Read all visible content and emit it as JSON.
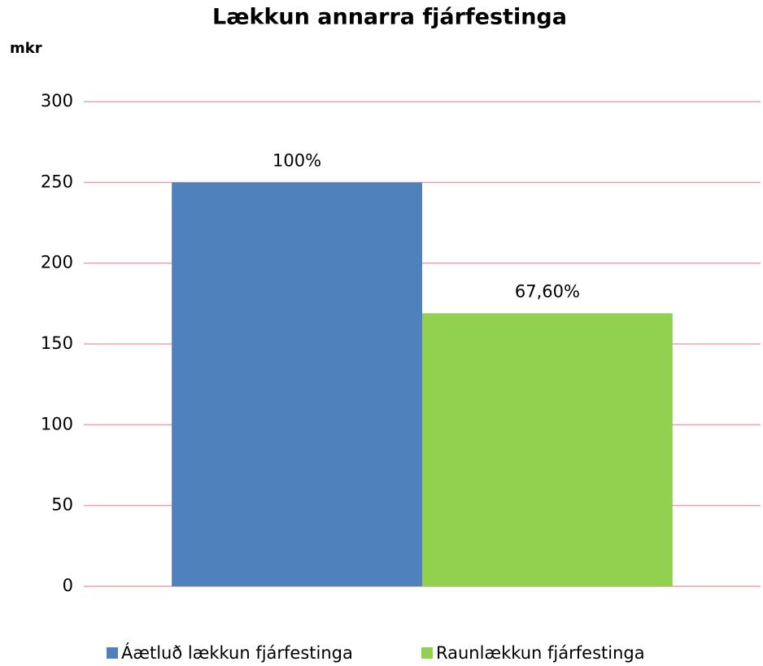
{
  "chart_data": {
    "type": "bar",
    "title": "Lækkun annarra fjárfestinga",
    "y_label": "mkr",
    "categories": [
      null
    ],
    "series": [
      {
        "name": "Áætluð lækkun fjárfestinga",
        "color": "#4f81bd",
        "values": [
          250
        ]
      },
      {
        "name": "Raunlækkun fjárfestinga",
        "color": "#92d050",
        "values": [
          169
        ]
      }
    ],
    "annotations": [
      "100%",
      "67,60%"
    ],
    "ylim": [
      0,
      300
    ],
    "yticks": [
      0,
      50,
      100,
      150,
      200,
      250,
      300
    ],
    "grid": true,
    "grid_color": "#e6a3ab",
    "legend": "bottom"
  }
}
